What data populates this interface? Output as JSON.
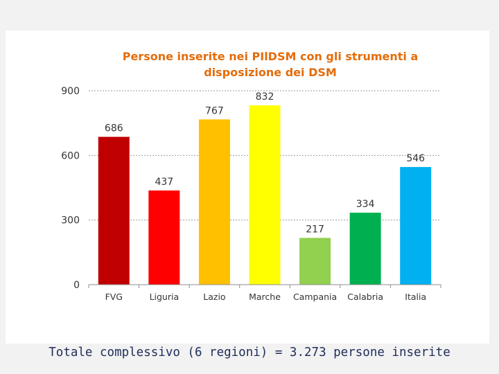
{
  "chart_data": {
    "type": "bar",
    "title": "Persone inserite nei PIlDSM con gli strumenti a disposizione dei DSM",
    "title_lines": [
      "Persone inserite nei PIlDSM con gli strumenti a",
      "disposizione dei DSM"
    ],
    "categories": [
      "FVG",
      "Liguria",
      "Lazio",
      "Marche",
      "Campania",
      "Calabria",
      "Italia"
    ],
    "values": [
      686,
      437,
      767,
      832,
      217,
      334,
      546
    ],
    "colors": [
      "#c00000",
      "#ff0000",
      "#ffc000",
      "#ffff00",
      "#92d050",
      "#00b050",
      "#00b0f0"
    ],
    "ylim": [
      0,
      900
    ],
    "yticks": [
      0,
      300,
      600,
      900
    ],
    "xlabel": "",
    "ylabel": "",
    "grid": true,
    "legend": "none"
  },
  "footer": {
    "text": "Totale complessivo (6 regioni) = 3.273 persone inserite"
  },
  "colors": {
    "title": "#e46c0a",
    "footer": "#1f2d5a",
    "grid": "#9a9a9a"
  }
}
